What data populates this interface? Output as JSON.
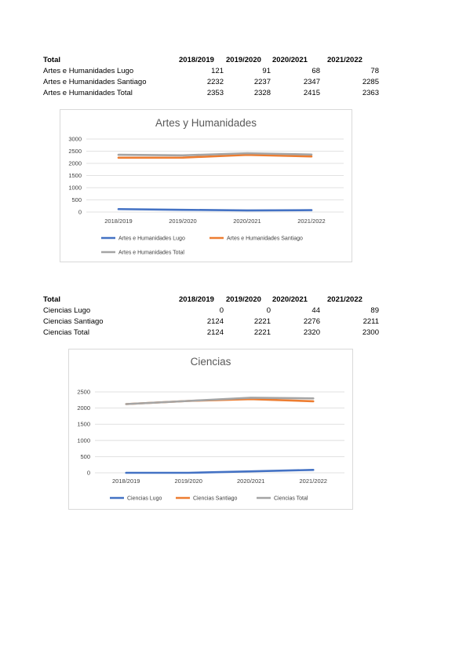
{
  "tables": [
    {
      "header": [
        "Total",
        "2018/2019",
        "2019/2020",
        "2020/2021",
        "2021/2022"
      ],
      "rows": [
        {
          "label": "Artes e Humanidades Lugo",
          "values": [
            "121",
            "91",
            "68",
            "78"
          ]
        },
        {
          "label": "Artes e Humanidades Santiago",
          "values": [
            "2232",
            "2237",
            "2347",
            "2285"
          ]
        },
        {
          "label": "Artes e Humanidades Total",
          "values": [
            "2353",
            "2328",
            "2415",
            "2363"
          ]
        }
      ]
    },
    {
      "header": [
        "Total",
        "2018/2019",
        "2019/2020",
        "2020/2021",
        "2021/2022"
      ],
      "rows": [
        {
          "label": "Ciencias Lugo",
          "values": [
            "0",
            "0",
            "44",
            "89"
          ]
        },
        {
          "label": "Ciencias Santiago",
          "values": [
            "2124",
            "2221",
            "2276",
            "2211"
          ]
        },
        {
          "label": "Ciencias Total",
          "values": [
            "2124",
            "2221",
            "2320",
            "2300"
          ]
        }
      ]
    }
  ],
  "chart_data": [
    {
      "type": "line",
      "title": "Artes y Humanidades",
      "categories": [
        "2018/2019",
        "2019/2020",
        "2020/2021",
        "2021/2022"
      ],
      "yticks": [
        "0",
        "500",
        "1000",
        "1500",
        "2000",
        "2500",
        "3000"
      ],
      "ylim": [
        0,
        3000
      ],
      "grid": true,
      "legend_position": "bottom",
      "series": [
        {
          "name": "Artes e Humanidades Lugo",
          "values": [
            121,
            91,
            68,
            78
          ],
          "color": "#4472C4"
        },
        {
          "name": "Artes e Humanidades Santiago",
          "values": [
            2232,
            2237,
            2347,
            2285
          ],
          "color": "#ED7D31"
        },
        {
          "name": "Artes e Humanidades Total",
          "values": [
            2353,
            2328,
            2415,
            2363
          ],
          "color": "#A5A5A5"
        }
      ]
    },
    {
      "type": "line",
      "title": "Ciencias",
      "categories": [
        "2018/2019",
        "2019/2020",
        "2020/2021",
        "2021/2022"
      ],
      "yticks": [
        "0",
        "500",
        "1000",
        "1500",
        "2000",
        "2500"
      ],
      "ylim": [
        0,
        2500
      ],
      "grid": true,
      "legend_position": "bottom",
      "series": [
        {
          "name": "Ciencias Lugo",
          "values": [
            0,
            0,
            44,
            89
          ],
          "color": "#4472C4"
        },
        {
          "name": "Ciencias Santiago",
          "values": [
            2124,
            2221,
            2276,
            2211
          ],
          "color": "#ED7D31"
        },
        {
          "name": "Ciencias Total",
          "values": [
            2124,
            2221,
            2320,
            2300
          ],
          "color": "#A5A5A5"
        }
      ]
    }
  ]
}
